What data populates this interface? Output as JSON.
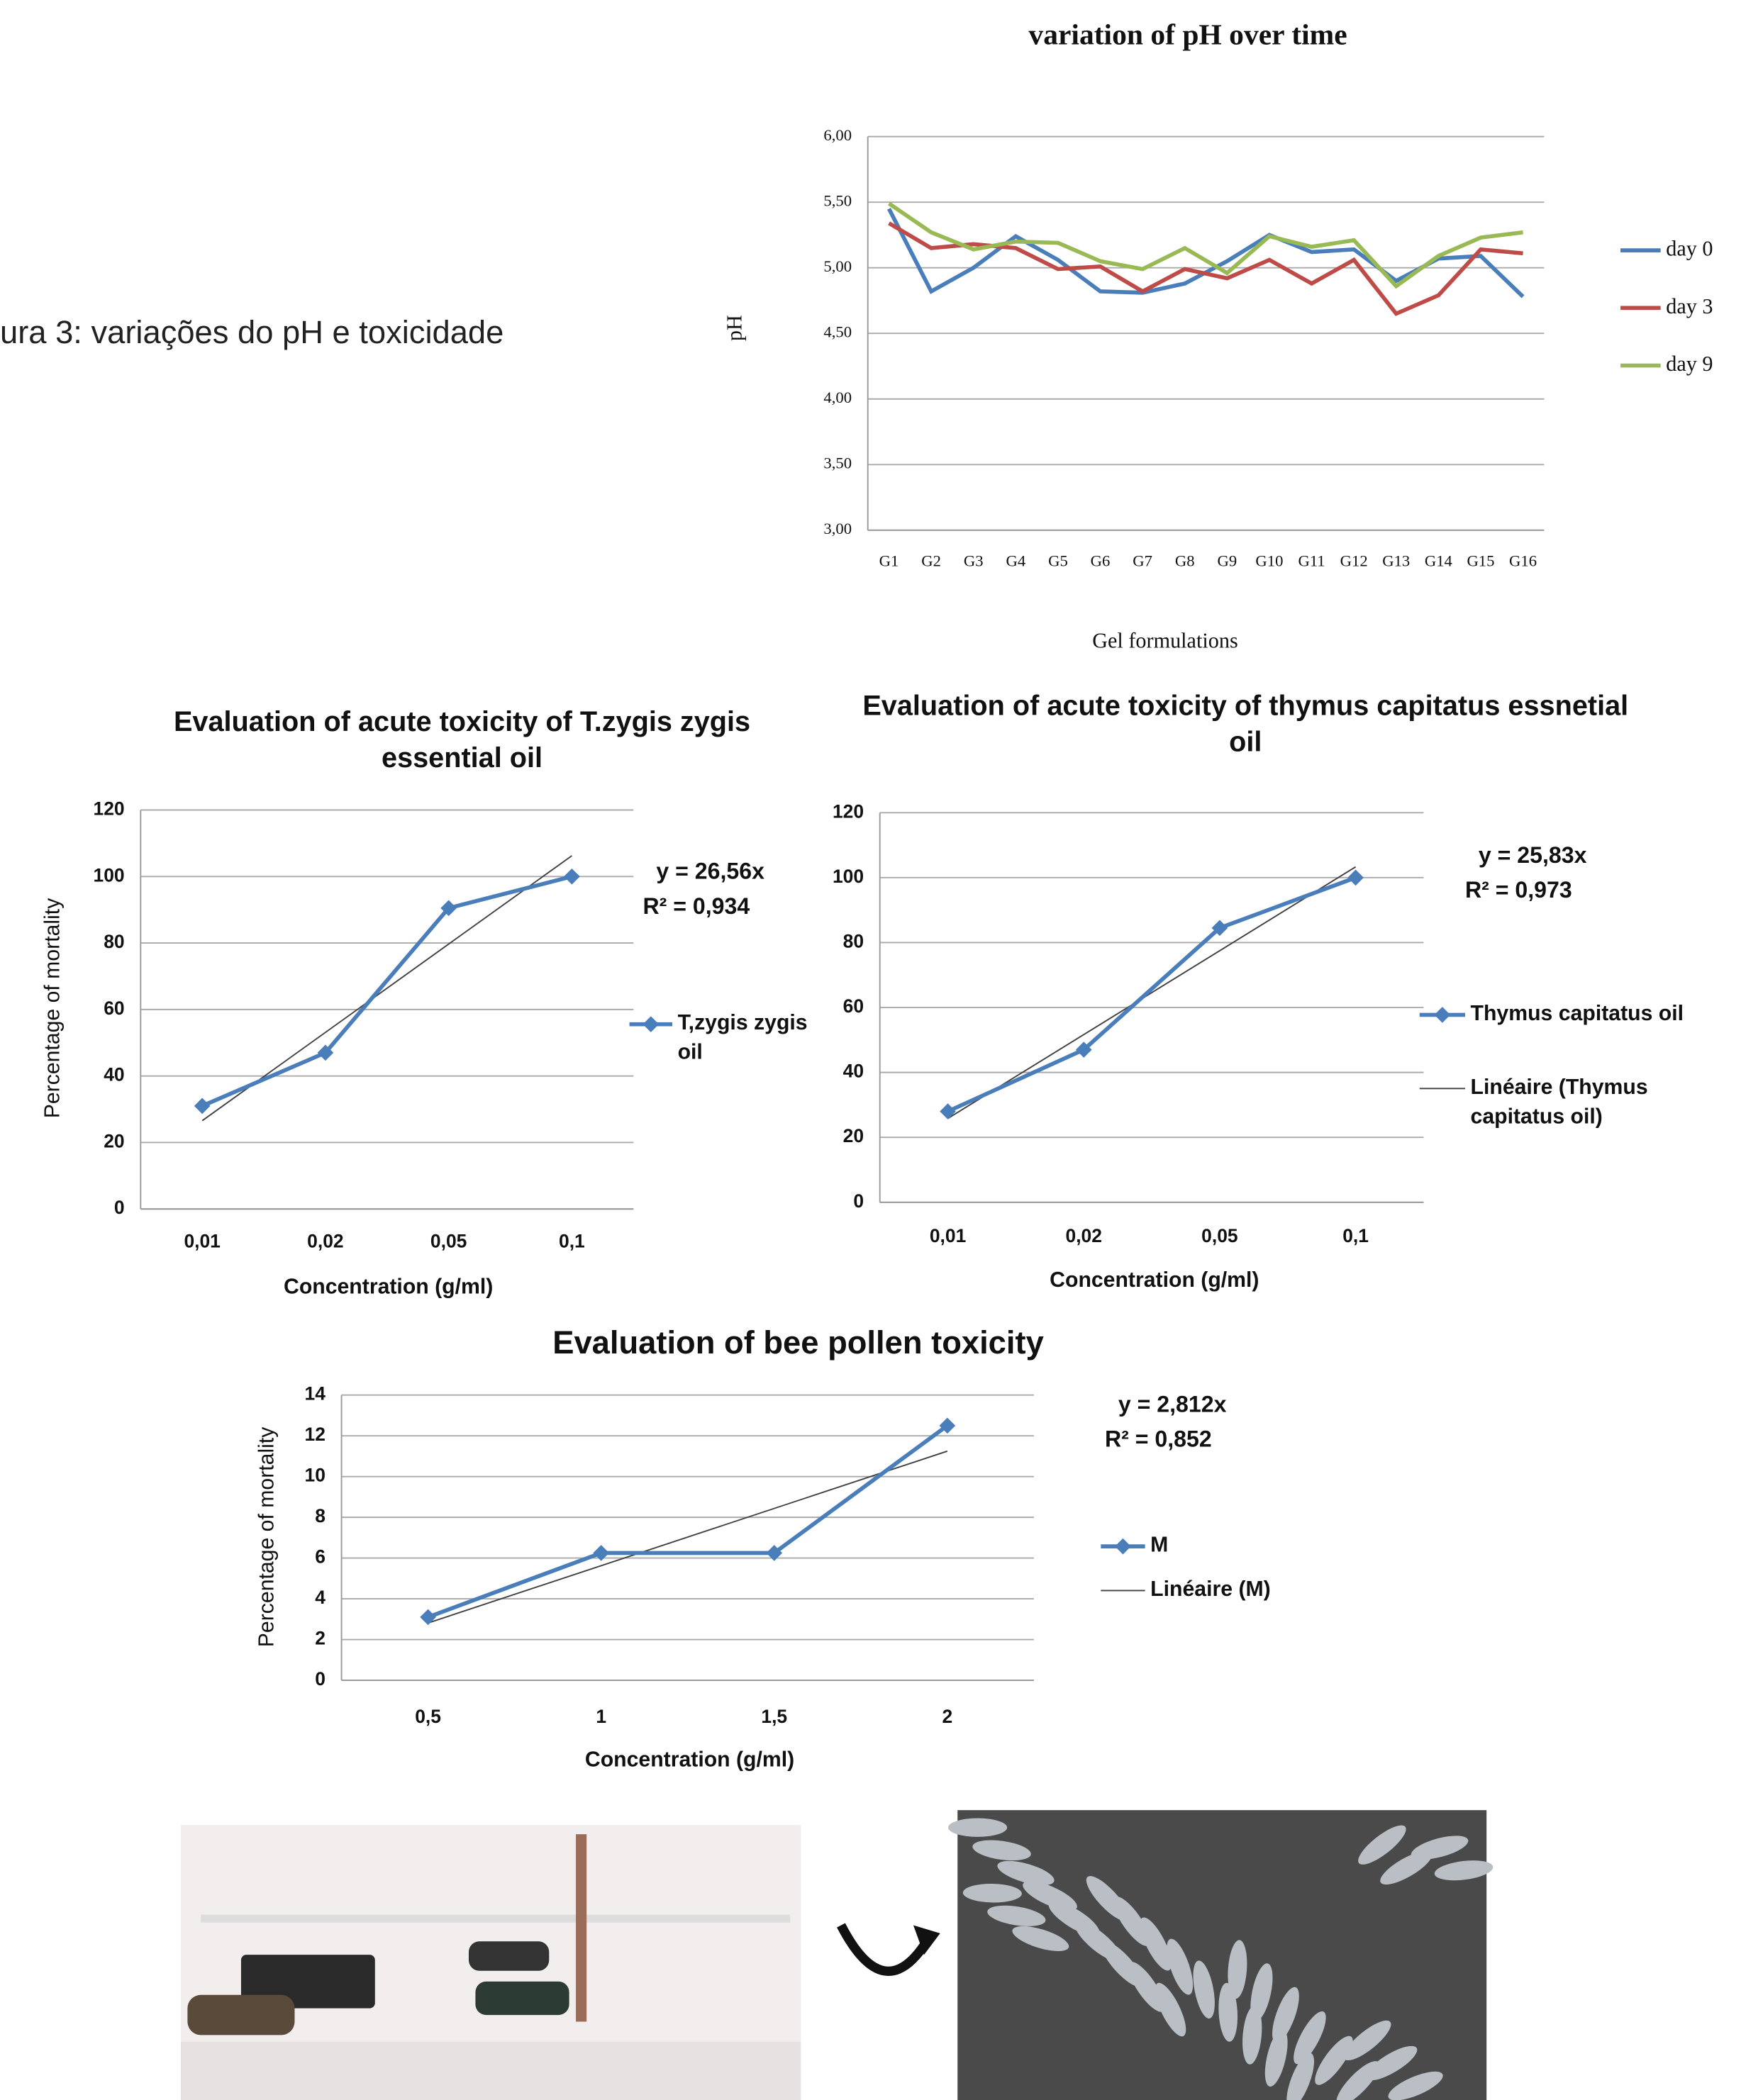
{
  "caption": "ura 3:   variações do pH e toxicidade",
  "chart_data": [
    {
      "type": "line",
      "title": "variation of pH over time",
      "y_label": "pH",
      "x_label": "Gel formulations",
      "categories": [
        "G1",
        "G2",
        "G3",
        "G4",
        "G5",
        "G6",
        "G7",
        "G8",
        "G9",
        "G10",
        "G11",
        "G12",
        "G13",
        "G14",
        "G15",
        "G16"
      ],
      "ylim": [
        3,
        6
      ],
      "yticks": [
        {
          "value": 3,
          "label": "3,00"
        },
        {
          "value": 3.5,
          "label": "3,50"
        },
        {
          "value": 4,
          "label": "4,00"
        },
        {
          "value": 4.5,
          "label": "4,50"
        },
        {
          "value": 5,
          "label": "5,00"
        },
        {
          "value": 5.5,
          "label": "5,50"
        },
        {
          "value": 6,
          "label": "6,00"
        }
      ],
      "grid": true,
      "legend": "right",
      "series": [
        {
          "name": "day 0",
          "color": "#4a7ebb",
          "values": [
            5.45,
            4.82,
            5.0,
            5.24,
            5.06,
            4.82,
            4.81,
            4.88,
            5.05,
            5.25,
            5.12,
            5.14,
            4.9,
            5.07,
            5.09,
            4.78
          ]
        },
        {
          "name": "day 3",
          "color": "#be4b48",
          "values": [
            5.34,
            5.15,
            5.18,
            5.15,
            4.99,
            5.01,
            4.82,
            4.99,
            4.92,
            5.06,
            4.88,
            5.06,
            4.65,
            4.79,
            5.14,
            5.11
          ]
        },
        {
          "name": "day 9",
          "color": "#98b954",
          "values": [
            5.49,
            5.27,
            5.14,
            5.2,
            5.19,
            5.05,
            4.99,
            5.15,
            4.96,
            5.24,
            5.16,
            5.21,
            4.86,
            5.09,
            5.23,
            5.27
          ]
        }
      ]
    },
    {
      "type": "line",
      "title": "Evaluation of acute toxicity of T.zygis zygis essential oil",
      "y_label": "Percentage of mortality",
      "x_label": "Concentration (g/ml)",
      "categories": [
        "0,01",
        "0,02",
        "0,05",
        "0,1"
      ],
      "ylim": [
        0,
        120
      ],
      "yticks": [
        0,
        20,
        40,
        60,
        80,
        100,
        120
      ],
      "grid": true,
      "legend": "right",
      "marker": "diamond",
      "series": [
        {
          "name": "T,zygis zygis oil",
          "color": "#4a7ebb",
          "values": [
            31,
            47,
            90.5,
            100
          ]
        }
      ],
      "trendline": {
        "color": "#404040",
        "equation": {
          "value": 26.56,
          "label": "y = 26,56x"
        },
        "r2": {
          "value": 0.934,
          "label": "R² = 0,934"
        }
      }
    },
    {
      "type": "line",
      "title": "Evaluation of acute toxicity of thymus capitatus essnetial oil",
      "x_label": "Concentration (g/ml)",
      "categories": [
        "0,01",
        "0,02",
        "0,05",
        "0,1"
      ],
      "ylim": [
        0,
        120
      ],
      "yticks": [
        0,
        20,
        40,
        60,
        80,
        100,
        120
      ],
      "grid": true,
      "legend": "right",
      "marker": "diamond",
      "series": [
        {
          "name": "Thymus capitatus oil",
          "color": "#4a7ebb",
          "values": [
            28,
            47,
            84.5,
            100
          ]
        }
      ],
      "trendline": {
        "name": "Linéaire (Thymus capitatus oil)",
        "color": "#404040",
        "equation": {
          "value": 25.83,
          "label": "y = 25,83x"
        },
        "r2": {
          "value": 0.973,
          "label": "R² = 0,973"
        }
      }
    },
    {
      "type": "line",
      "title": "Evaluation of bee pollen toxicity",
      "y_label": "Percentage of mortality",
      "x_label": "Concentration (g/ml)",
      "categories": [
        "0,5",
        "1",
        "1,5",
        "2"
      ],
      "ylim": [
        0,
        14
      ],
      "yticks": [
        0,
        2,
        4,
        6,
        8,
        10,
        12,
        14
      ],
      "grid": true,
      "legend": "right",
      "marker": "diamond",
      "series": [
        {
          "name": "M",
          "color": "#4a7ebb",
          "values": [
            3.1,
            6.25,
            6.25,
            12.5
          ]
        }
      ],
      "trendline": {
        "name": "Linéaire (M)",
        "color": "#404040",
        "equation": {
          "value": 2.812,
          "label": "y = 2,812x"
        },
        "r2": {
          "value": 0.852,
          "label": "R² = 0,852"
        }
      }
    }
  ]
}
